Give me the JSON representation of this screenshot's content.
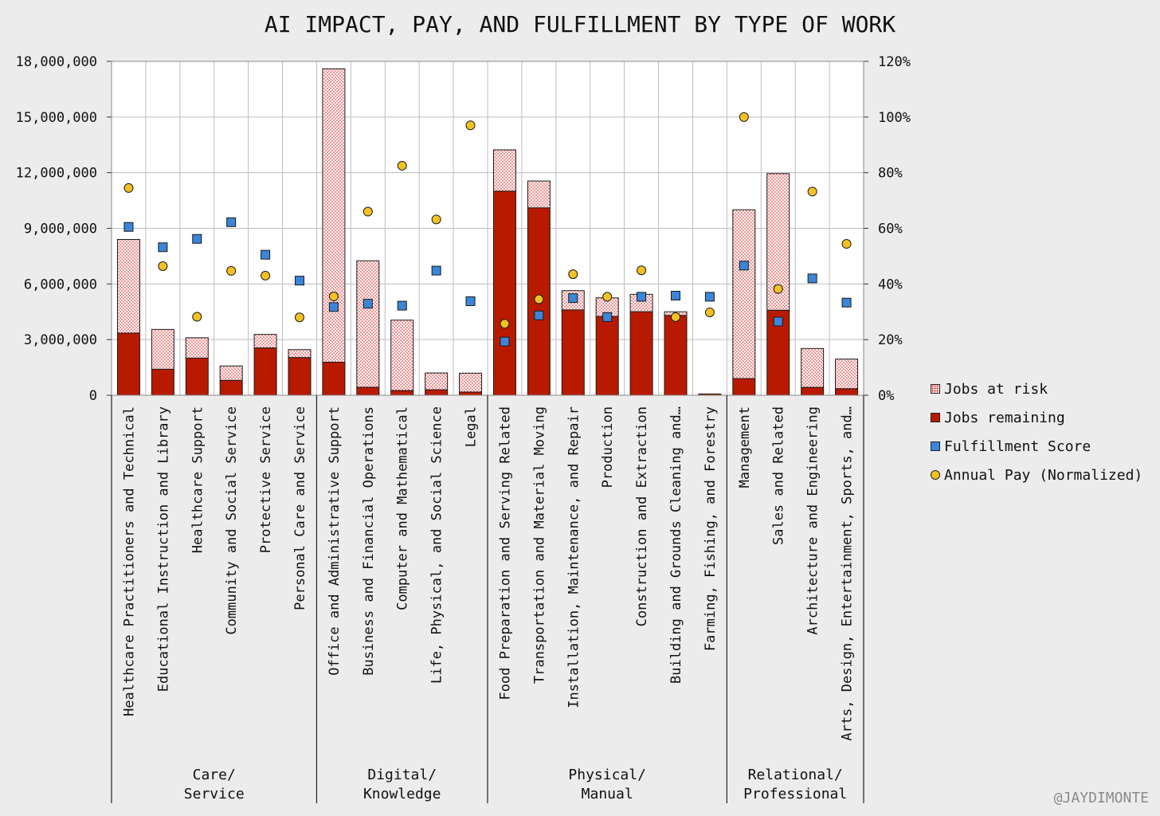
{
  "chart_data": {
    "type": "bar",
    "title": "AI IMPACT, PAY, AND FULFILLMENT BY TYPE OF WORK",
    "ylim_left": [
      0,
      18000000
    ],
    "ylim_right": [
      0,
      120
    ],
    "left_ticks": [
      "0",
      "3,000,000",
      "6,000,000",
      "9,000,000",
      "12,000,000",
      "15,000,000",
      "18,000,000"
    ],
    "right_ticks": [
      "0%",
      "20%",
      "40%",
      "60%",
      "80%",
      "100%",
      "120%"
    ],
    "categories": [
      "Healthcare Practitioners and Technical",
      "Educational Instruction and Library",
      "Healthcare Support",
      "Community and Social Service",
      "Protective Service",
      "Personal Care and Service",
      "Office and Administrative Support",
      "Business and Financial Operations",
      "Computer and Mathematical",
      "Life, Physical, and Social Science",
      "Legal",
      "Food Preparation and Serving Related",
      "Transportation and Material Moving",
      "Installation, Maintenance, and Repair",
      "Production",
      "Construction and Extraction",
      "Building and Grounds Cleaning and…",
      "Farming, Fishing, and Forestry",
      "Management",
      "Sales and Related",
      "Architecture and Engineering",
      "Arts, Design, Entertainment, Sports, and…"
    ],
    "groups": [
      {
        "label": [
          "Care/",
          "Service"
        ],
        "count": 6
      },
      {
        "label": [
          "Digital/",
          "Knowledge"
        ],
        "count": 5
      },
      {
        "label": [
          "Physical/",
          "Manual"
        ],
        "count": 7
      },
      {
        "label": [
          "Relational/",
          "Professional"
        ],
        "count": 4
      }
    ],
    "series": [
      {
        "name": "Jobs remaining",
        "axis": "left",
        "values": [
          3350000,
          1400000,
          2000000,
          800000,
          2550000,
          2030000,
          1780000,
          430000,
          250000,
          300000,
          170000,
          11000000,
          10100000,
          4600000,
          4250000,
          4500000,
          4300000,
          70000,
          900000,
          4580000,
          420000,
          350000
        ]
      },
      {
        "name": "Jobs at risk",
        "axis": "left",
        "values": [
          5050000,
          2150000,
          1100000,
          780000,
          730000,
          430000,
          15820000,
          6820000,
          3800000,
          900000,
          1020000,
          2230000,
          1450000,
          1040000,
          1000000,
          940000,
          200000,
          0,
          9100000,
          7370000,
          2100000,
          1600000
        ]
      },
      {
        "name": "Fulfillment Score",
        "axis": "right",
        "values": [
          60.5,
          53.2,
          56.2,
          62.2,
          50.5,
          41.2,
          31.7,
          32.9,
          32.2,
          44.8,
          33.8,
          19.3,
          28.7,
          34.9,
          28.1,
          35.4,
          35.8,
          35.4,
          46.6,
          26.5,
          42.0,
          33.3
        ]
      },
      {
        "name": "Annual Pay (Normalized)",
        "axis": "right",
        "values": [
          74.5,
          46.4,
          28.2,
          44.7,
          43.0,
          28.0,
          35.5,
          66.0,
          82.5,
          63.2,
          97.0,
          25.7,
          34.5,
          43.5,
          35.4,
          44.9,
          28.1,
          29.8,
          100.0,
          38.2,
          73.2,
          54.4
        ]
      }
    ],
    "legend": [
      "Jobs at risk",
      "Jobs remaining",
      "Fulfillment Score",
      "Annual Pay (Normalized)"
    ],
    "legend_position": "right",
    "colors": {
      "remaining": "#b81a00",
      "risk_fill": "#fbe8e8",
      "risk_dot": "#d02020",
      "fulfillment": "#3a86d8",
      "pay": "#f2c224"
    }
  },
  "watermark": "@JAYDIMONTE"
}
